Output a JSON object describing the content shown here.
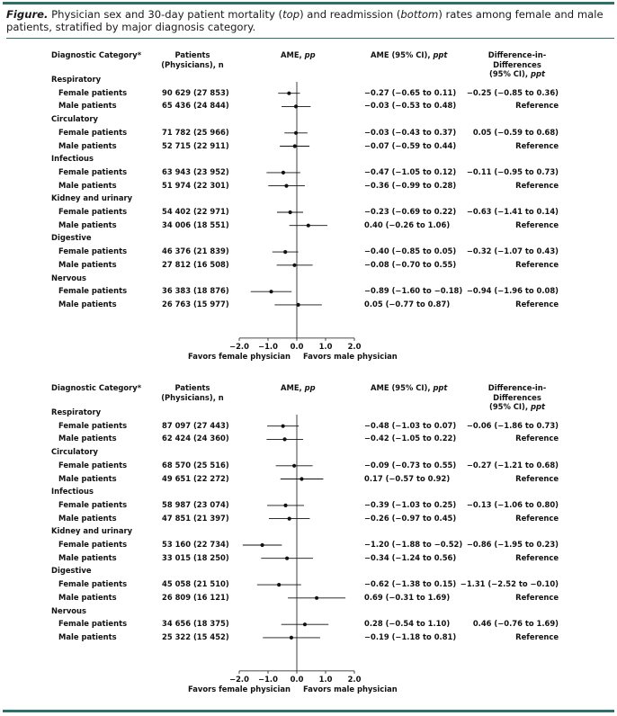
{
  "figure": {
    "label": "Figure.",
    "caption_parts": [
      {
        "text": " Physician sex and 30-day patient mortality (",
        "italic": false
      },
      {
        "text": "top",
        "italic": true
      },
      {
        "text": ") and readmission (",
        "italic": false
      },
      {
        "text": "bottom",
        "italic": true
      },
      {
        "text": ") rates among female and male patients, stratified by major diagnosis category.",
        "italic": false
      }
    ]
  },
  "headers": {
    "category": "Diagnostic Category*",
    "patients_line1": "Patients",
    "patients_line2": "(Physicians), n",
    "ame_prefix": "AME, ",
    "ame_unit": "pp",
    "ci_prefix": "AME (95% CI), ",
    "ci_unit": "ppt",
    "did_line1": "Difference-in-Differences",
    "did_prefix": "(95% CI), ",
    "did_unit": "ppt"
  },
  "colors": {
    "rule": "#2f6f6a",
    "marker": "#111111"
  },
  "chart_data": [
    {
      "type": "forest",
      "outcome": "mortality",
      "xlim": [
        -2.0,
        2.0
      ],
      "x_ticks": [
        "−2.0",
        "−1.0",
        "0.0",
        "1.0",
        "2.0"
      ],
      "x_tick_values": [
        -2,
        -1,
        0,
        1,
        2
      ],
      "xlabel_left": "Favors female physician",
      "xlabel_right": "Favors male physician",
      "groups": [
        {
          "category": "Respiratory",
          "rows": [
            {
              "label": "Female patients",
              "patients": "90 629 (27 853)",
              "est": -0.27,
              "lo": -0.65,
              "hi": 0.11,
              "ci_text": "−0.27 (−0.65 to 0.11)",
              "did": "−0.25 (−0.85 to 0.36)"
            },
            {
              "label": "Male patients",
              "patients": "65 436 (24 844)",
              "est": -0.03,
              "lo": -0.53,
              "hi": 0.48,
              "ci_text": "−0.03 (−0.53 to 0.48)",
              "did": "Reference"
            }
          ]
        },
        {
          "category": "Circulatory",
          "rows": [
            {
              "label": "Female patients",
              "patients": "71 782 (25 966)",
              "est": -0.03,
              "lo": -0.43,
              "hi": 0.37,
              "ci_text": "−0.03 (−0.43 to 0.37)",
              "did": "0.05 (−0.59 to 0.68)"
            },
            {
              "label": "Male patients",
              "patients": "52 715 (22 911)",
              "est": -0.07,
              "lo": -0.59,
              "hi": 0.44,
              "ci_text": "−0.07 (−0.59 to 0.44)",
              "did": "Reference"
            }
          ]
        },
        {
          "category": "Infectious",
          "rows": [
            {
              "label": "Female patients",
              "patients": "63 943 (23 952)",
              "est": -0.47,
              "lo": -1.05,
              "hi": 0.12,
              "ci_text": "−0.47 (−1.05 to 0.12)",
              "did": "−0.11 (−0.95 to 0.73)"
            },
            {
              "label": "Male patients",
              "patients": "51 974 (22 301)",
              "est": -0.36,
              "lo": -0.99,
              "hi": 0.28,
              "ci_text": "−0.36 (−0.99 to 0.28)",
              "did": "Reference"
            }
          ]
        },
        {
          "category": "Kidney and urinary",
          "rows": [
            {
              "label": "Female patients",
              "patients": "54 402 (22 971)",
              "est": -0.23,
              "lo": -0.69,
              "hi": 0.22,
              "ci_text": "−0.23 (−0.69 to 0.22)",
              "did": "−0.63 (−1.41 to 0.14)"
            },
            {
              "label": "Male patients",
              "patients": "34 006 (18 551)",
              "est": 0.4,
              "lo": -0.26,
              "hi": 1.06,
              "ci_text": "0.40 (−0.26 to 1.06)",
              "did": "Reference"
            }
          ]
        },
        {
          "category": "Digestive",
          "rows": [
            {
              "label": "Female patients",
              "patients": "46 376 (21 839)",
              "est": -0.4,
              "lo": -0.85,
              "hi": 0.05,
              "ci_text": "−0.40 (−0.85 to 0.05)",
              "did": "−0.32 (−1.07 to 0.43)"
            },
            {
              "label": "Male patients",
              "patients": "27 812 (16 508)",
              "est": -0.08,
              "lo": -0.7,
              "hi": 0.55,
              "ci_text": "−0.08 (−0.70 to 0.55)",
              "did": "Reference"
            }
          ]
        },
        {
          "category": "Nervous",
          "rows": [
            {
              "label": "Female patients",
              "patients": "36 383 (18 876)",
              "est": -0.89,
              "lo": -1.6,
              "hi": -0.18,
              "ci_text": "−0.89 (−1.60 to −0.18)",
              "did": "−0.94 (−1.96 to 0.08)"
            },
            {
              "label": "Male patients",
              "patients": "26 763 (15 977)",
              "est": 0.05,
              "lo": -0.77,
              "hi": 0.87,
              "ci_text": "0.05 (−0.77 to 0.87)",
              "did": "Reference"
            }
          ]
        }
      ]
    },
    {
      "type": "forest",
      "outcome": "readmission",
      "xlim": [
        -2.0,
        2.0
      ],
      "x_ticks": [
        "−2.0",
        "−1.0",
        "0.0",
        "1.0",
        "2.0"
      ],
      "x_tick_values": [
        -2,
        -1,
        0,
        1,
        2
      ],
      "xlabel_left": "Favors female physician",
      "xlabel_right": "Favors male physician",
      "groups": [
        {
          "category": "Respiratory",
          "rows": [
            {
              "label": "Female patients",
              "patients": "87 097 (27 443)",
              "est": -0.48,
              "lo": -1.03,
              "hi": 0.07,
              "ci_text": "−0.48 (−1.03 to 0.07)",
              "did": "−0.06 (−1.86 to 0.73)"
            },
            {
              "label": "Male patients",
              "patients": "62 424 (24 360)",
              "est": -0.42,
              "lo": -1.05,
              "hi": 0.22,
              "ci_text": "−0.42 (−1.05 to 0.22)",
              "did": "Reference"
            }
          ]
        },
        {
          "category": "Circulatory",
          "rows": [
            {
              "label": "Female patients",
              "patients": "68 570 (25 516)",
              "est": -0.09,
              "lo": -0.73,
              "hi": 0.55,
              "ci_text": "−0.09 (−0.73 to 0.55)",
              "did": "−0.27 (−1.21 to 0.68)"
            },
            {
              "label": "Male patients",
              "patients": "49 651 (22 272)",
              "est": 0.17,
              "lo": -0.57,
              "hi": 0.92,
              "ci_text": "0.17 (−0.57 to 0.92)",
              "did": "Reference"
            }
          ]
        },
        {
          "category": "Infectious",
          "rows": [
            {
              "label": "Female patients",
              "patients": "58 987 (23 074)",
              "est": -0.39,
              "lo": -1.03,
              "hi": 0.25,
              "ci_text": "−0.39 (−1.03 to 0.25)",
              "did": "−0.13 (−1.06 to 0.80)"
            },
            {
              "label": "Male patients",
              "patients": "47 851 (21 397)",
              "est": -0.26,
              "lo": -0.97,
              "hi": 0.45,
              "ci_text": "−0.26 (−0.97 to 0.45)",
              "did": "Reference"
            }
          ]
        },
        {
          "category": "Kidney and urinary",
          "rows": [
            {
              "label": "Female patients",
              "patients": "53 160 (22 734)",
              "est": -1.2,
              "lo": -1.88,
              "hi": -0.52,
              "ci_text": "−1.20 (−1.88 to −0.52)",
              "did": "−0.86 (−1.95 to 0.23)"
            },
            {
              "label": "Male patients",
              "patients": "33 015 (18 250)",
              "est": -0.34,
              "lo": -1.24,
              "hi": 0.56,
              "ci_text": "−0.34 (−1.24 to 0.56)",
              "did": "Reference"
            }
          ]
        },
        {
          "category": "Digestive",
          "rows": [
            {
              "label": "Female patients",
              "patients": "45 058 (21 510)",
              "est": -0.62,
              "lo": -1.38,
              "hi": 0.15,
              "ci_text": "−0.62 (−1.38 to 0.15)",
              "did": "−1.31 (−2.52 to −0.10)"
            },
            {
              "label": "Male patients",
              "patients": "26 809 (16 121)",
              "est": 0.69,
              "lo": -0.31,
              "hi": 1.69,
              "ci_text": "0.69 (−0.31 to 1.69)",
              "did": "Reference"
            }
          ]
        },
        {
          "category": "Nervous",
          "rows": [
            {
              "label": "Female patients",
              "patients": "34 656 (18 375)",
              "est": 0.28,
              "lo": -0.54,
              "hi": 1.1,
              "ci_text": "0.28 (−0.54 to 1.10)",
              "did": "0.46 (−0.76 to 1.69)"
            },
            {
              "label": "Male patients",
              "patients": "25 322 (15 452)",
              "est": -0.19,
              "lo": -1.18,
              "hi": 0.81,
              "ci_text": "−0.19 (−1.18 to 0.81)",
              "did": "Reference"
            }
          ]
        }
      ]
    }
  ]
}
